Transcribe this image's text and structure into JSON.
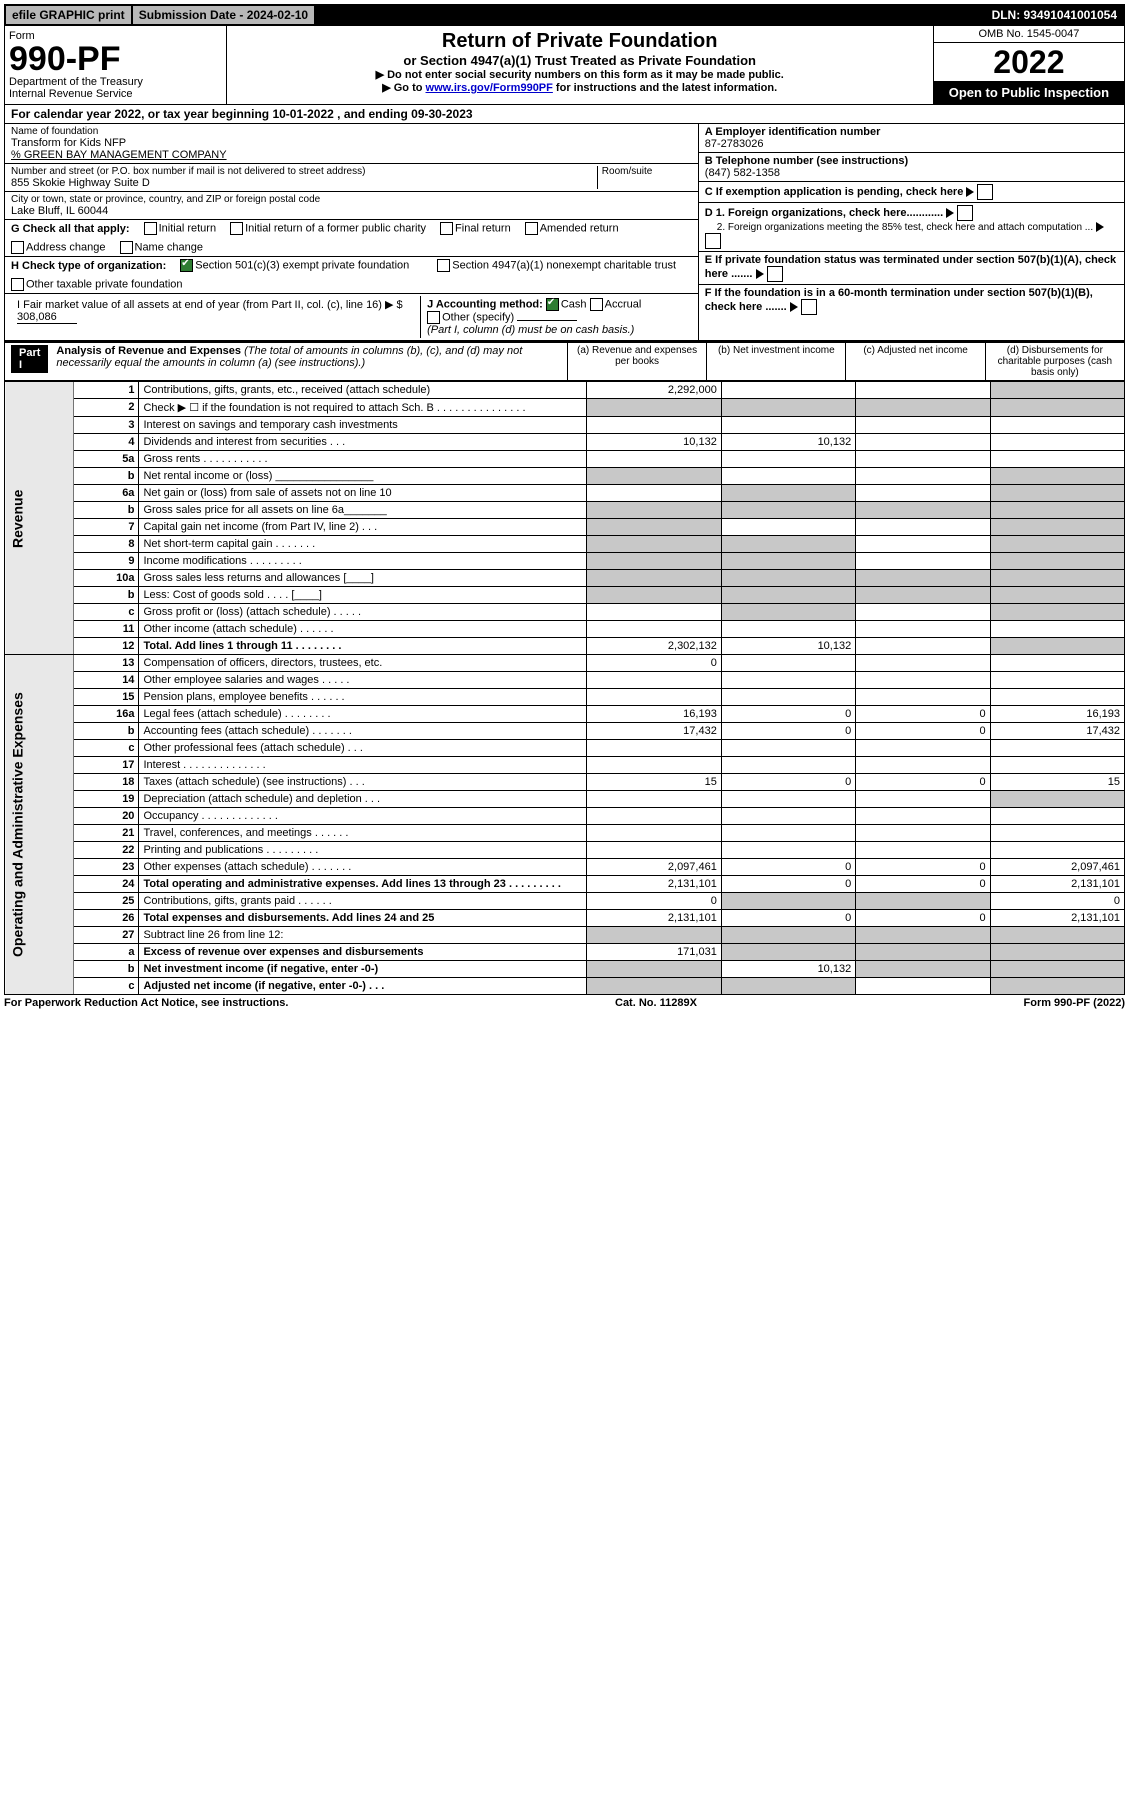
{
  "topbar": {
    "efile": "efile GRAPHIC print",
    "subdate_label": "Submission Date - 2024-02-10",
    "dln": "DLN: 93491041001054"
  },
  "header": {
    "form_word": "Form",
    "form_num": "990-PF",
    "dept": "Department of the Treasury",
    "irs": "Internal Revenue Service",
    "title": "Return of Private Foundation",
    "subtitle": "or Section 4947(a)(1) Trust Treated as Private Foundation",
    "instr1": "▶ Do not enter social security numbers on this form as it may be made public.",
    "instr2_pre": "▶ Go to ",
    "instr2_link": "www.irs.gov/Form990PF",
    "instr2_post": " for instructions and the latest information.",
    "omb": "OMB No. 1545-0047",
    "year": "2022",
    "open": "Open to Public Inspection"
  },
  "calyear": "For calendar year 2022, or tax year beginning 10-01-2022            , and ending 09-30-2023",
  "info": {
    "name_label": "Name of foundation",
    "name": "Transform for Kids NFP",
    "co": "% GREEN BAY MANAGEMENT COMPANY",
    "addr_label": "Number and street (or P.O. box number if mail is not delivered to street address)",
    "room_label": "Room/suite",
    "addr": "855 Skokie Highway Suite D",
    "city_label": "City or town, state or province, country, and ZIP or foreign postal code",
    "city": "Lake Bluff, IL  60044",
    "a_label": "A Employer identification number",
    "a_val": "87-2783026",
    "b_label": "B Telephone number (see instructions)",
    "b_val": "(847) 582-1358",
    "c_label": "C If exemption application is pending, check here",
    "d1": "D 1. Foreign organizations, check here............",
    "d2": "2. Foreign organizations meeting the 85% test, check here and attach computation ...",
    "e": "E  If private foundation status was terminated under section 507(b)(1)(A), check here .......",
    "f": "F  If the foundation is in a 60-month termination under section 507(b)(1)(B), check here .......",
    "g_label": "G Check all that apply:",
    "g_opts": [
      "Initial return",
      "Initial return of a former public charity",
      "Final return",
      "Amended return",
      "Address change",
      "Name change"
    ],
    "h_label": "H Check type of organization:",
    "h_opts": [
      "Section 501(c)(3) exempt private foundation",
      "Section 4947(a)(1) nonexempt charitable trust",
      "Other taxable private foundation"
    ],
    "i_label": "I Fair market value of all assets at end of year (from Part II, col. (c), line 16) ▶ $",
    "i_val": "  308,086",
    "j_label": "J Accounting method:",
    "j_opts": [
      "Cash",
      "Accrual",
      "Other (specify)"
    ],
    "j_note": "(Part I, column (d) must be on cash basis.)"
  },
  "part1": {
    "label": "Part I",
    "title": "Analysis of Revenue and Expenses",
    "note": "(The total of amounts in columns (b), (c), and (d) may not necessarily equal the amounts in column (a) (see instructions).)",
    "cols": {
      "a": "(a)   Revenue and expenses per books",
      "b": "(b)   Net investment income",
      "c": "(c)   Adjusted net income",
      "d": "(d)   Disbursements for charitable purposes (cash basis only)"
    }
  },
  "sides": {
    "rev": "Revenue",
    "exp": "Operating and Administrative Expenses"
  },
  "rows": [
    {
      "n": "1",
      "t": "Contributions, gifts, grants, etc., received (attach schedule)",
      "a": "2,292,000",
      "d_shade": true
    },
    {
      "n": "2",
      "t": "Check ▶ ☐ if the foundation is not required to attach Sch. B   .  .  .  .  .  .  .  .  .  .  .  .  .  .  .",
      "all_shade": true
    },
    {
      "n": "3",
      "t": "Interest on savings and temporary cash investments"
    },
    {
      "n": "4",
      "t": "Dividends and interest from securities    .   .   .",
      "a": "10,132",
      "b": "10,132"
    },
    {
      "n": "5a",
      "t": "Gross rents    .   .   .   .   .   .   .   .   .   .   ."
    },
    {
      "n": "b",
      "t": "Net rental income or (loss) ________________",
      "a_shade": true,
      "d_shade": true
    },
    {
      "n": "6a",
      "t": "Net gain or (loss) from sale of assets not on line 10",
      "b_shade": true,
      "d_shade": true
    },
    {
      "n": "b",
      "t": "Gross sales price for all assets on line 6a_______",
      "all_shade": true
    },
    {
      "n": "7",
      "t": "Capital gain net income (from Part IV, line 2)   .   .   .",
      "a_shade": true,
      "d_shade": true
    },
    {
      "n": "8",
      "t": "Net short-term capital gain   .   .   .   .   .   .   .",
      "a_shade": true,
      "b_shade": true,
      "d_shade": true
    },
    {
      "n": "9",
      "t": "Income modifications  .   .   .   .   .   .   .   .   .",
      "a_shade": true,
      "b_shade": true,
      "d_shade": true
    },
    {
      "n": "10a",
      "t": "Gross sales less returns and allowances   [____]",
      "all_shade": true
    },
    {
      "n": "b",
      "t": "Less: Cost of goods sold    .   .   .   .   [____]",
      "all_shade": true
    },
    {
      "n": "c",
      "t": "Gross profit or (loss) (attach schedule)    .   .   .   .   .",
      "b_shade": true,
      "d_shade": true
    },
    {
      "n": "11",
      "t": "Other income (attach schedule)    .   .   .   .   .   ."
    },
    {
      "n": "12",
      "t": "Total. Add lines 1 through 11   .   .   .   .   .   .   .   .",
      "bold": true,
      "a": "2,302,132",
      "b": "10,132",
      "d_shade": true
    },
    {
      "n": "13",
      "t": "Compensation of officers, directors, trustees, etc.",
      "a": "0"
    },
    {
      "n": "14",
      "t": "Other employee salaries and wages   .   .   .   .   ."
    },
    {
      "n": "15",
      "t": "Pension plans, employee benefits  .   .   .   .   .   ."
    },
    {
      "n": "16a",
      "t": "Legal fees (attach schedule)  .   .   .   .   .   .   .   .",
      "a": "16,193",
      "b": "0",
      "c": "0",
      "d": "16,193"
    },
    {
      "n": "b",
      "t": "Accounting fees (attach schedule)  .   .   .   .   .   .   .",
      "a": "17,432",
      "b": "0",
      "c": "0",
      "d": "17,432"
    },
    {
      "n": "c",
      "t": "Other professional fees (attach schedule)    .   .   ."
    },
    {
      "n": "17",
      "t": "Interest  .   .   .   .   .   .   .   .   .   .   .   .   .   ."
    },
    {
      "n": "18",
      "t": "Taxes (attach schedule) (see instructions)    .   .   .",
      "a": "15",
      "b": "0",
      "c": "0",
      "d": "15"
    },
    {
      "n": "19",
      "t": "Depreciation (attach schedule) and depletion   .   .   .",
      "d_shade": true
    },
    {
      "n": "20",
      "t": "Occupancy  .   .   .   .   .   .   .   .   .   .   .   .   ."
    },
    {
      "n": "21",
      "t": "Travel, conferences, and meetings  .   .   .   .   .   ."
    },
    {
      "n": "22",
      "t": "Printing and publications  .   .   .   .   .   .   .   .   ."
    },
    {
      "n": "23",
      "t": "Other expenses (attach schedule)  .   .   .   .   .   .   .",
      "a": "2,097,461",
      "b": "0",
      "c": "0",
      "d": "2,097,461"
    },
    {
      "n": "24",
      "t": "Total operating and administrative expenses. Add lines 13 through 23   .   .   .   .   .   .   .   .   .",
      "bold": true,
      "a": "2,131,101",
      "b": "0",
      "c": "0",
      "d": "2,131,101"
    },
    {
      "n": "25",
      "t": "Contributions, gifts, grants paid    .   .   .   .   .   .",
      "a": "0",
      "b_shade": true,
      "c_shade": true,
      "d": "0"
    },
    {
      "n": "26",
      "t": "Total expenses and disbursements. Add lines 24 and 25",
      "bold": true,
      "a": "2,131,101",
      "b": "0",
      "c": "0",
      "d": "2,131,101"
    },
    {
      "n": "27",
      "t": "Subtract line 26 from line 12:",
      "all_shade": true
    },
    {
      "n": "a",
      "t": "Excess of revenue over expenses and disbursements",
      "bold": true,
      "a": "171,031",
      "b_shade": true,
      "c_shade": true,
      "d_shade": true
    },
    {
      "n": "b",
      "t": "Net investment income (if negative, enter -0-)",
      "bold": true,
      "a_shade": true,
      "b": "10,132",
      "c_shade": true,
      "d_shade": true
    },
    {
      "n": "c",
      "t": "Adjusted net income (if negative, enter -0-)   .   .   .",
      "bold": true,
      "a_shade": true,
      "b_shade": true,
      "d_shade": true
    }
  ],
  "footer": {
    "left": "For Paperwork Reduction Act Notice, see instructions.",
    "mid": "Cat. No. 11289X",
    "right": "Form 990-PF (2022)"
  }
}
